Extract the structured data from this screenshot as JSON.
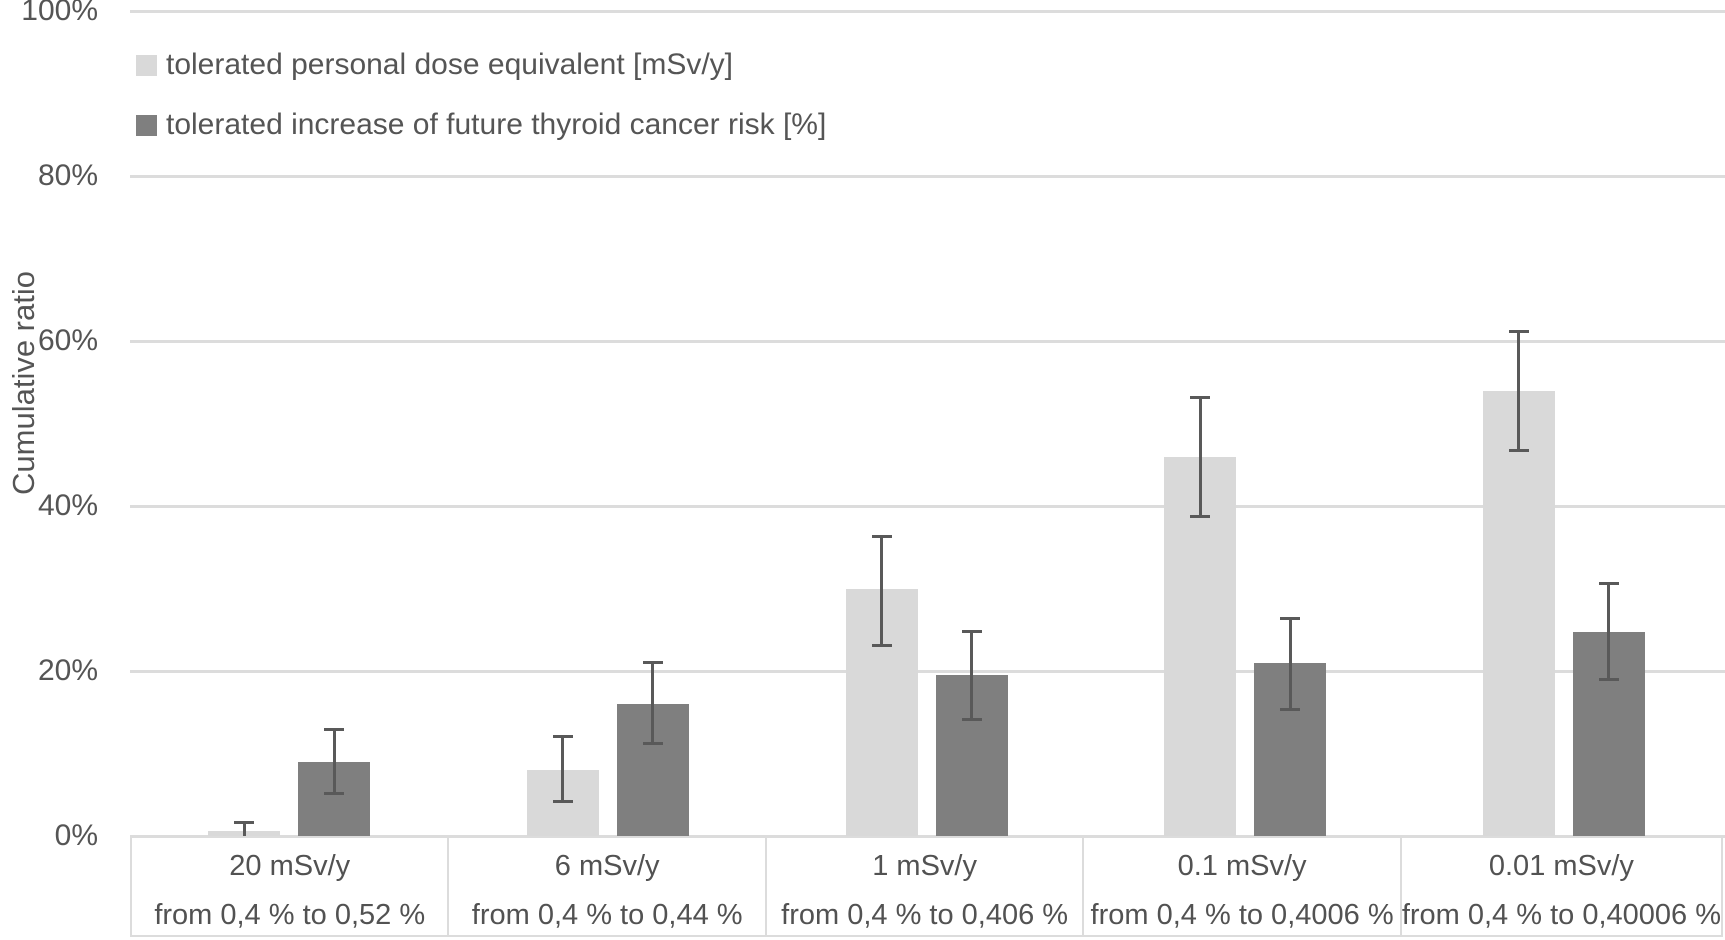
{
  "chart_data": {
    "type": "bar",
    "title": "",
    "ylabel": "Cumulative ratio",
    "xlabel": "",
    "ylim": [
      0,
      100
    ],
    "grid": true,
    "legend_position": "top-left-inside",
    "y_ticks": [
      {
        "value": 0,
        "label": "0%"
      },
      {
        "value": 20,
        "label": "20%"
      },
      {
        "value": 40,
        "label": "40%"
      },
      {
        "value": 60,
        "label": "60%"
      },
      {
        "value": 80,
        "label": "80%"
      },
      {
        "value": 100,
        "label": "100%"
      }
    ],
    "categories": [
      {
        "label": "20 mSv/y",
        "sublabel": "from 0,4 % to 0,52 %"
      },
      {
        "label": "6 mSv/y",
        "sublabel": "from 0,4 % to 0,44 %"
      },
      {
        "label": "1 mSv/y",
        "sublabel": "from 0,4 % to 0,406 %"
      },
      {
        "label": "0.1 mSv/y",
        "sublabel": "from 0,4 % to 0,4006 %"
      },
      {
        "label": "0.01 mSv/y",
        "sublabel": "from 0,4 % to 0,40006 %"
      }
    ],
    "series": [
      {
        "name": "tolerated personal dose equivalent [mSv/y]",
        "color": "#d9d9d9",
        "values": [
          0.6,
          8,
          30,
          46,
          54
        ],
        "error_low": [
          0,
          4.2,
          23.2,
          38.8,
          46.8
        ],
        "error_high": [
          1.7,
          12.1,
          36.4,
          53.2,
          61.2
        ]
      },
      {
        "name": "tolerated increase of future thyroid cancer risk [%]",
        "color": "#7f7f7f",
        "values": [
          9,
          16,
          19.5,
          21,
          24.7
        ],
        "error_low": [
          5.2,
          11.3,
          14.2,
          15.4,
          19.0
        ],
        "error_high": [
          13.0,
          21.1,
          24.8,
          26.4,
          30.7
        ]
      }
    ],
    "colors": {
      "gridline": "#dcdcdc",
      "error_bar": "#595959",
      "text": "#555555",
      "box_border": "#dcdcdc"
    }
  }
}
